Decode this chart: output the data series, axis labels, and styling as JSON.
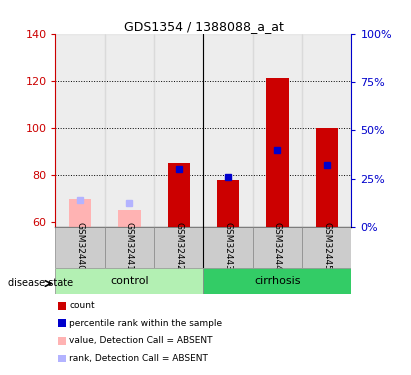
{
  "title": "GDS1354 / 1388088_a_at",
  "samples": [
    "GSM32440",
    "GSM32441",
    "GSM32442",
    "GSM32443",
    "GSM32444",
    "GSM32445"
  ],
  "count_values": [
    null,
    null,
    85.0,
    78.0,
    121.0,
    100.0
  ],
  "count_absent": [
    70.0,
    65.0,
    null,
    null,
    null,
    null
  ],
  "rank_values_pct": [
    null,
    null,
    30.0,
    26.0,
    40.0,
    32.0
  ],
  "rank_absent_pct": [
    14.0,
    12.5,
    null,
    null,
    null,
    null
  ],
  "ylim_left": [
    58,
    140
  ],
  "ylim_right": [
    0,
    100
  ],
  "yticks_left": [
    60,
    80,
    100,
    120,
    140
  ],
  "ytick_labels_left": [
    "60",
    "80",
    "100",
    "120",
    "140"
  ],
  "yticks_right": [
    0,
    25,
    50,
    75,
    100
  ],
  "ytick_labels_right": [
    "0%",
    "25%",
    "50%",
    "75%",
    "100%"
  ],
  "bar_color": "#cc0000",
  "bar_absent_color": "#ffb3b3",
  "rank_color": "#0000cc",
  "rank_absent_color": "#b3b3ff",
  "left_axis_color": "#cc0000",
  "right_axis_color": "#0000cc",
  "control_color": "#b3f0b3",
  "cirrhosis_color": "#33cc66",
  "sample_bg": "#cccccc",
  "disease_state_label": "disease state",
  "control_label": "control",
  "cirrhosis_label": "cirrhosis",
  "legend_items": [
    {
      "color": "#cc0000",
      "label": "count"
    },
    {
      "color": "#0000cc",
      "label": "percentile rank within the sample"
    },
    {
      "color": "#ffb3b3",
      "label": "value, Detection Call = ABSENT"
    },
    {
      "color": "#b3b3ff",
      "label": "rank, Detection Call = ABSENT"
    }
  ]
}
